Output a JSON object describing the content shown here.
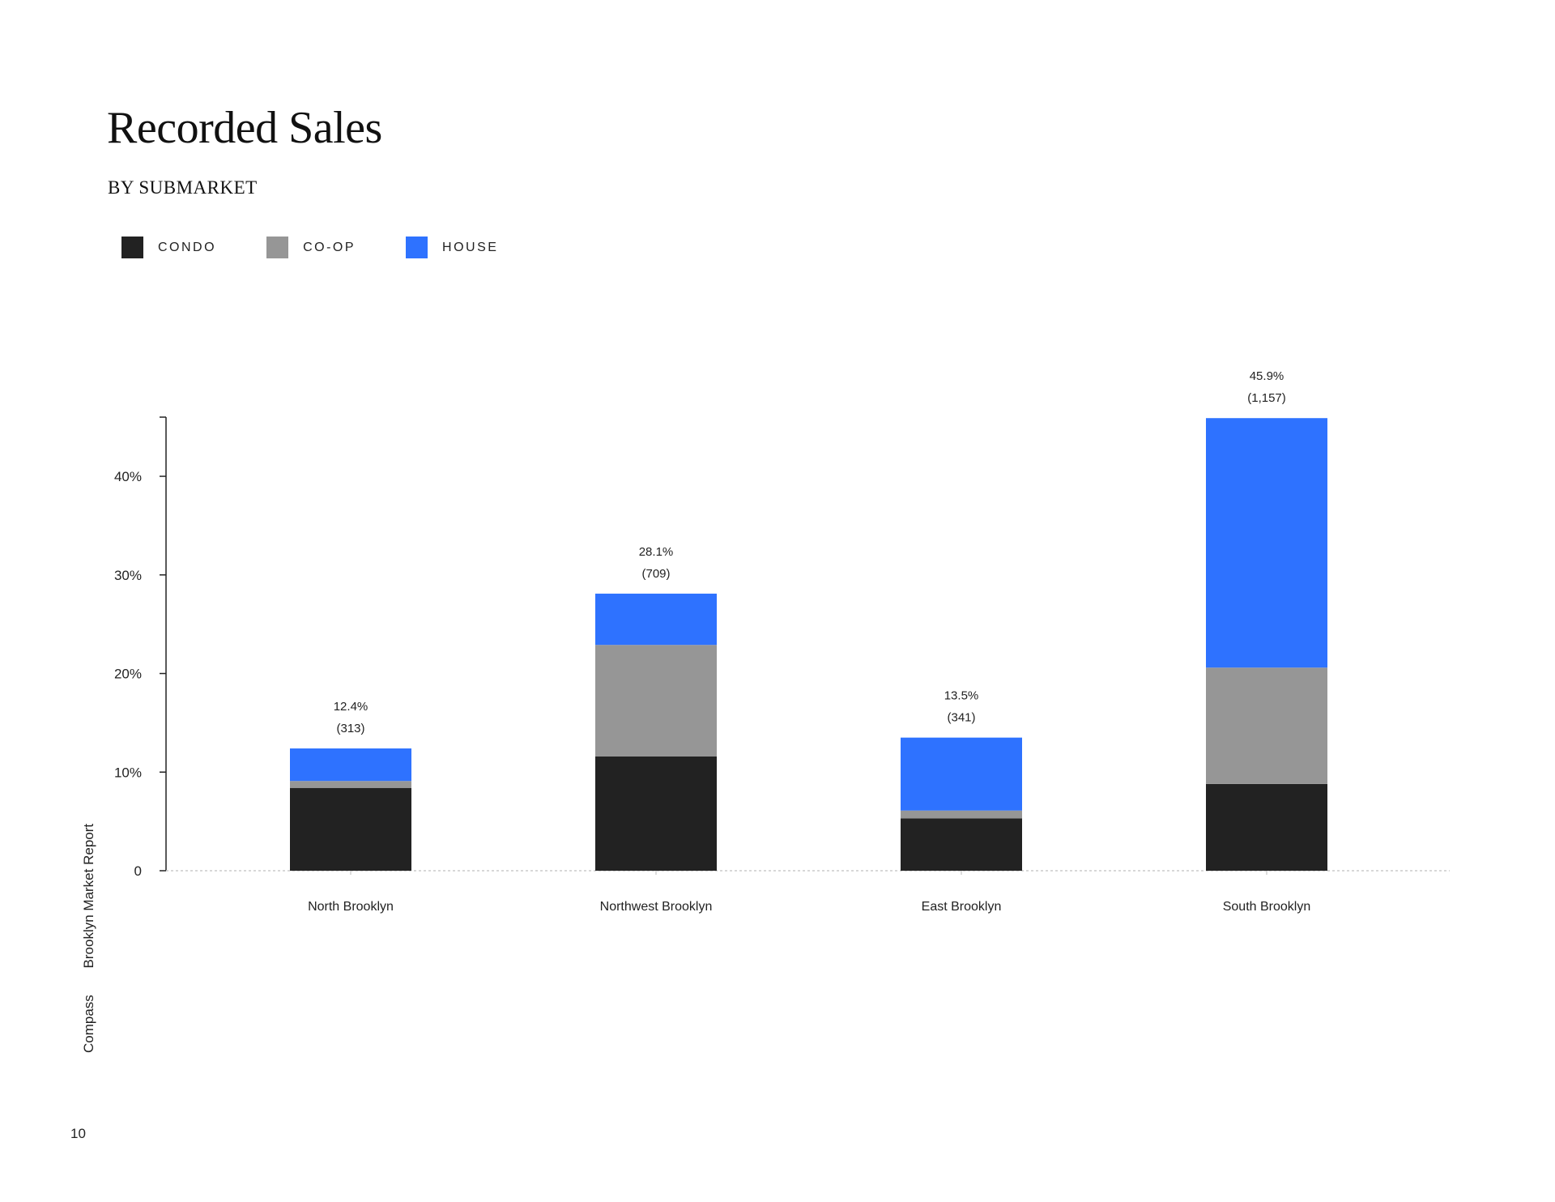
{
  "page": {
    "title": "Recorded Sales",
    "subtitle": "BY SUBMARKET",
    "side_text": [
      "Compass",
      "Brooklyn Market Report"
    ],
    "page_number": "10"
  },
  "legend": [
    {
      "label": "CONDO",
      "color": "#222222"
    },
    {
      "label": "CO-OP",
      "color": "#969696"
    },
    {
      "label": "HOUSE",
      "color": "#2e72ff"
    }
  ],
  "chart_data": {
    "type": "bar",
    "stacked": true,
    "categories": [
      "North Brooklyn",
      "Northwest Brooklyn",
      "East Brooklyn",
      "South Brooklyn"
    ],
    "series": [
      {
        "name": "CONDO",
        "color": "#222222",
        "values": [
          8.4,
          11.6,
          5.3,
          8.8
        ]
      },
      {
        "name": "CO-OP",
        "color": "#969696",
        "values": [
          0.7,
          11.3,
          0.8,
          11.8
        ]
      },
      {
        "name": "HOUSE",
        "color": "#2e72ff",
        "values": [
          3.3,
          5.2,
          7.4,
          25.3
        ]
      }
    ],
    "totals_pct": [
      "12.4%",
      "28.1%",
      "13.5%",
      "45.9%"
    ],
    "totals_count": [
      "(313)",
      "(709)",
      "(341)",
      "(1,157)"
    ],
    "ylim": [
      0,
      46
    ],
    "yticks": [
      0,
      10,
      20,
      30,
      40
    ],
    "ytick_labels": [
      "0",
      "10%",
      "20%",
      "30%",
      "40%"
    ],
    "grid": false
  }
}
